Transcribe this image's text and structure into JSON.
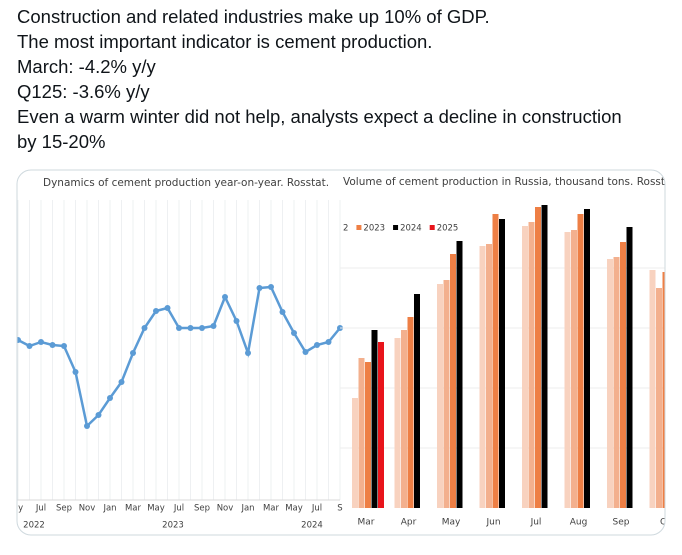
{
  "post": {
    "lines": [
      "Construction and related industries make up 10% of GDP.",
      "The most important indicator is cement production.",
      "March: -4.2% y/y",
      "Q125: -3.6% y/y",
      "Even a warm winter did not help, analysts expect a decline in construction",
      "by 15-20%"
    ]
  },
  "charts": [
    {
      "type": "line",
      "title": "Dynamics of cement production year-on-year. Rosstat.",
      "color": "#5b9bd5",
      "categories": [
        "ay",
        null,
        "Jul",
        null,
        "Sep",
        null,
        "Nov",
        null,
        "Jan",
        null,
        "Mar",
        null,
        "May",
        null,
        "Jul",
        null,
        "Sep",
        null,
        "Nov",
        null,
        "Jan",
        null,
        "Mar",
        null,
        "May",
        null,
        "Jul",
        null,
        "S"
      ],
      "values": [
        0.6,
        0,
        0.4,
        0.1,
        0,
        -2.6,
        -8,
        -6.9,
        -5.2,
        -3.6,
        -0.7,
        1.8,
        3.5,
        3.8,
        1.8,
        1.8,
        1.8,
        2,
        4.9,
        2.5,
        -0.7,
        5.8,
        5.9,
        3.4,
        1.3,
        -0.6,
        0.1,
        0.4,
        1.8
      ],
      "ylim": [
        -15.4,
        14.6
      ],
      "year_labels": [
        "2022",
        "2023",
        "2024"
      ]
    },
    {
      "type": "bar",
      "title": "Volume of cement production in Russia, thousand tons. Rosstat.",
      "categories": [
        "Mar",
        "Apr",
        "May",
        "Jun",
        "Jul",
        "Aug",
        "Sep",
        "O"
      ],
      "series": [
        {
          "name": null,
          "color": "#f8d2bf",
          "values": [
            110,
            170,
            224,
            262,
            282,
            276,
            249,
            238
          ]
        },
        {
          "name": "2",
          "color": "#f3b08e",
          "values": [
            150,
            178,
            228,
            264,
            286,
            278,
            251,
            220
          ]
        },
        {
          "name": "2023",
          "color": "#ee7f45",
          "values": [
            146,
            191,
            254,
            294,
            301,
            294,
            266,
            236
          ]
        },
        {
          "name": "2024",
          "color": "#000000",
          "values": [
            178,
            214,
            267,
            289,
            303,
            299,
            281,
            null
          ]
        },
        {
          "name": "2025",
          "color": "#e8141b",
          "values": [
            166,
            null,
            null,
            null,
            null,
            null,
            null,
            null
          ]
        }
      ],
      "ylim": [
        0,
        308
      ]
    }
  ]
}
